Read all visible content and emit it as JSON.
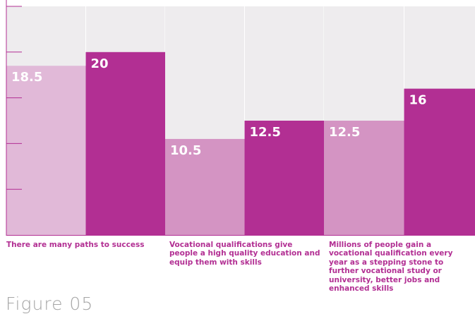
{
  "chart_data": {
    "type": "bar",
    "categories": [
      "There are many paths to success",
      "Vocational qualifications give people a high quality education and equip them with skills",
      "Millions of people gain a vocational qualification every year as a stepping stone to further vocational study or university, better jobs and enhanced skills"
    ],
    "series": [
      {
        "values": [
          18.5,
          10.5,
          12.5
        ]
      },
      {
        "values": [
          20,
          12.5,
          16
        ]
      }
    ],
    "value_labels": [
      [
        "18.5",
        "20"
      ],
      [
        "10.5",
        "12.5"
      ],
      [
        "12.5",
        "16"
      ]
    ],
    "ylim": [
      0,
      25
    ],
    "colors": {
      "background_band": "#eeecee",
      "series_light": [
        "#e1b9d8",
        "#d494c3",
        "#d494c3"
      ],
      "series_dark": "#b22f93",
      "axis": "#b22f93",
      "label_text": "#ffffff"
    }
  },
  "caption": "Figure 05"
}
